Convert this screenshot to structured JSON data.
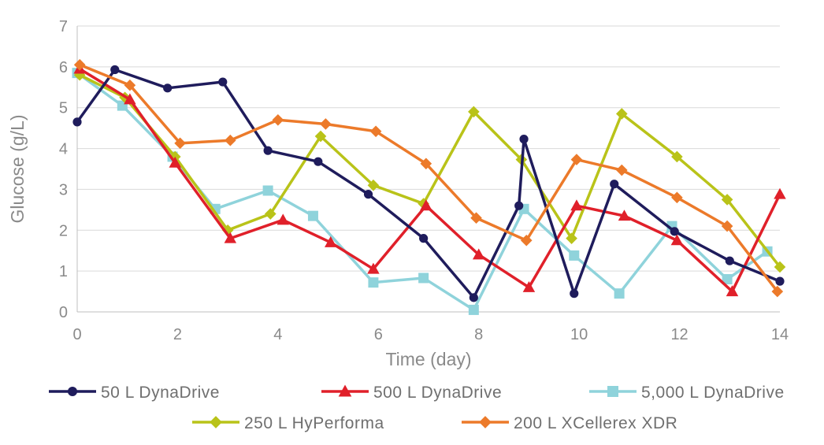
{
  "chart_data": {
    "type": "line",
    "title": "",
    "xlabel": "Time (day)",
    "ylabel": "Glucose (g/L)",
    "xlim": [
      0,
      14
    ],
    "ylim": [
      0,
      7
    ],
    "x_ticks": [
      0,
      2,
      4,
      6,
      8,
      10,
      12,
      14
    ],
    "y_ticks": [
      0,
      1,
      2,
      3,
      4,
      5,
      6,
      7
    ],
    "grid": true,
    "legend_position": "bottom",
    "series": [
      {
        "name": "50 L DynaDrive",
        "color": "#1f1c5c",
        "marker": "circle",
        "x": [
          0,
          0.75,
          1.8,
          2.9,
          3.8,
          4.8,
          5.8,
          6.9,
          7.9,
          8.8,
          8.9,
          9.9,
          10.7,
          11.9,
          13.0,
          14.0
        ],
        "y": [
          4.65,
          5.93,
          5.48,
          5.63,
          3.95,
          3.68,
          2.88,
          1.8,
          0.35,
          2.6,
          4.23,
          0.45,
          3.13,
          1.97,
          1.25,
          0.75
        ]
      },
      {
        "name": "500 L DynaDrive",
        "color": "#e0202a",
        "marker": "triangle",
        "x": [
          0.05,
          1.05,
          1.95,
          3.05,
          4.1,
          5.05,
          5.9,
          6.95,
          8.0,
          9.0,
          9.95,
          10.9,
          11.95,
          13.05,
          14.0
        ],
        "y": [
          5.95,
          5.2,
          3.65,
          1.8,
          2.25,
          1.7,
          1.05,
          2.6,
          1.4,
          0.6,
          2.6,
          2.35,
          1.75,
          0.5,
          2.88
        ]
      },
      {
        "name": "5,000 L DynaDrive",
        "color": "#8fd3db",
        "marker": "square",
        "x": [
          0,
          0.9,
          1.9,
          2.75,
          3.8,
          4.7,
          5.9,
          6.9,
          7.9,
          8.9,
          9.9,
          10.8,
          11.85,
          12.95,
          13.75
        ],
        "y": [
          5.85,
          5.05,
          3.8,
          2.52,
          2.97,
          2.35,
          0.72,
          0.83,
          0.05,
          2.52,
          1.38,
          0.45,
          2.1,
          0.8,
          1.48
        ]
      },
      {
        "name": "250 L HyPerforma",
        "color": "#b9c319",
        "marker": "diamond",
        "x": [
          0.05,
          0.95,
          1.95,
          3.0,
          3.85,
          4.85,
          5.9,
          6.9,
          7.9,
          8.85,
          9.85,
          10.85,
          11.95,
          12.95,
          14.0
        ],
        "y": [
          5.8,
          5.25,
          3.8,
          2.0,
          2.4,
          4.3,
          3.1,
          2.65,
          4.9,
          3.73,
          1.8,
          4.85,
          3.8,
          2.75,
          1.1
        ]
      },
      {
        "name": "200 L XCellerex XDR",
        "color": "#ec7a2a",
        "marker": "diamond",
        "x": [
          0.05,
          1.05,
          2.05,
          3.05,
          4.0,
          4.95,
          5.95,
          6.95,
          7.95,
          8.95,
          9.95,
          10.85,
          11.95,
          12.95,
          13.95
        ],
        "y": [
          6.05,
          5.55,
          4.13,
          4.2,
          4.7,
          4.6,
          4.42,
          3.63,
          2.3,
          1.75,
          3.73,
          3.47,
          2.8,
          2.1,
          0.5
        ]
      }
    ]
  }
}
